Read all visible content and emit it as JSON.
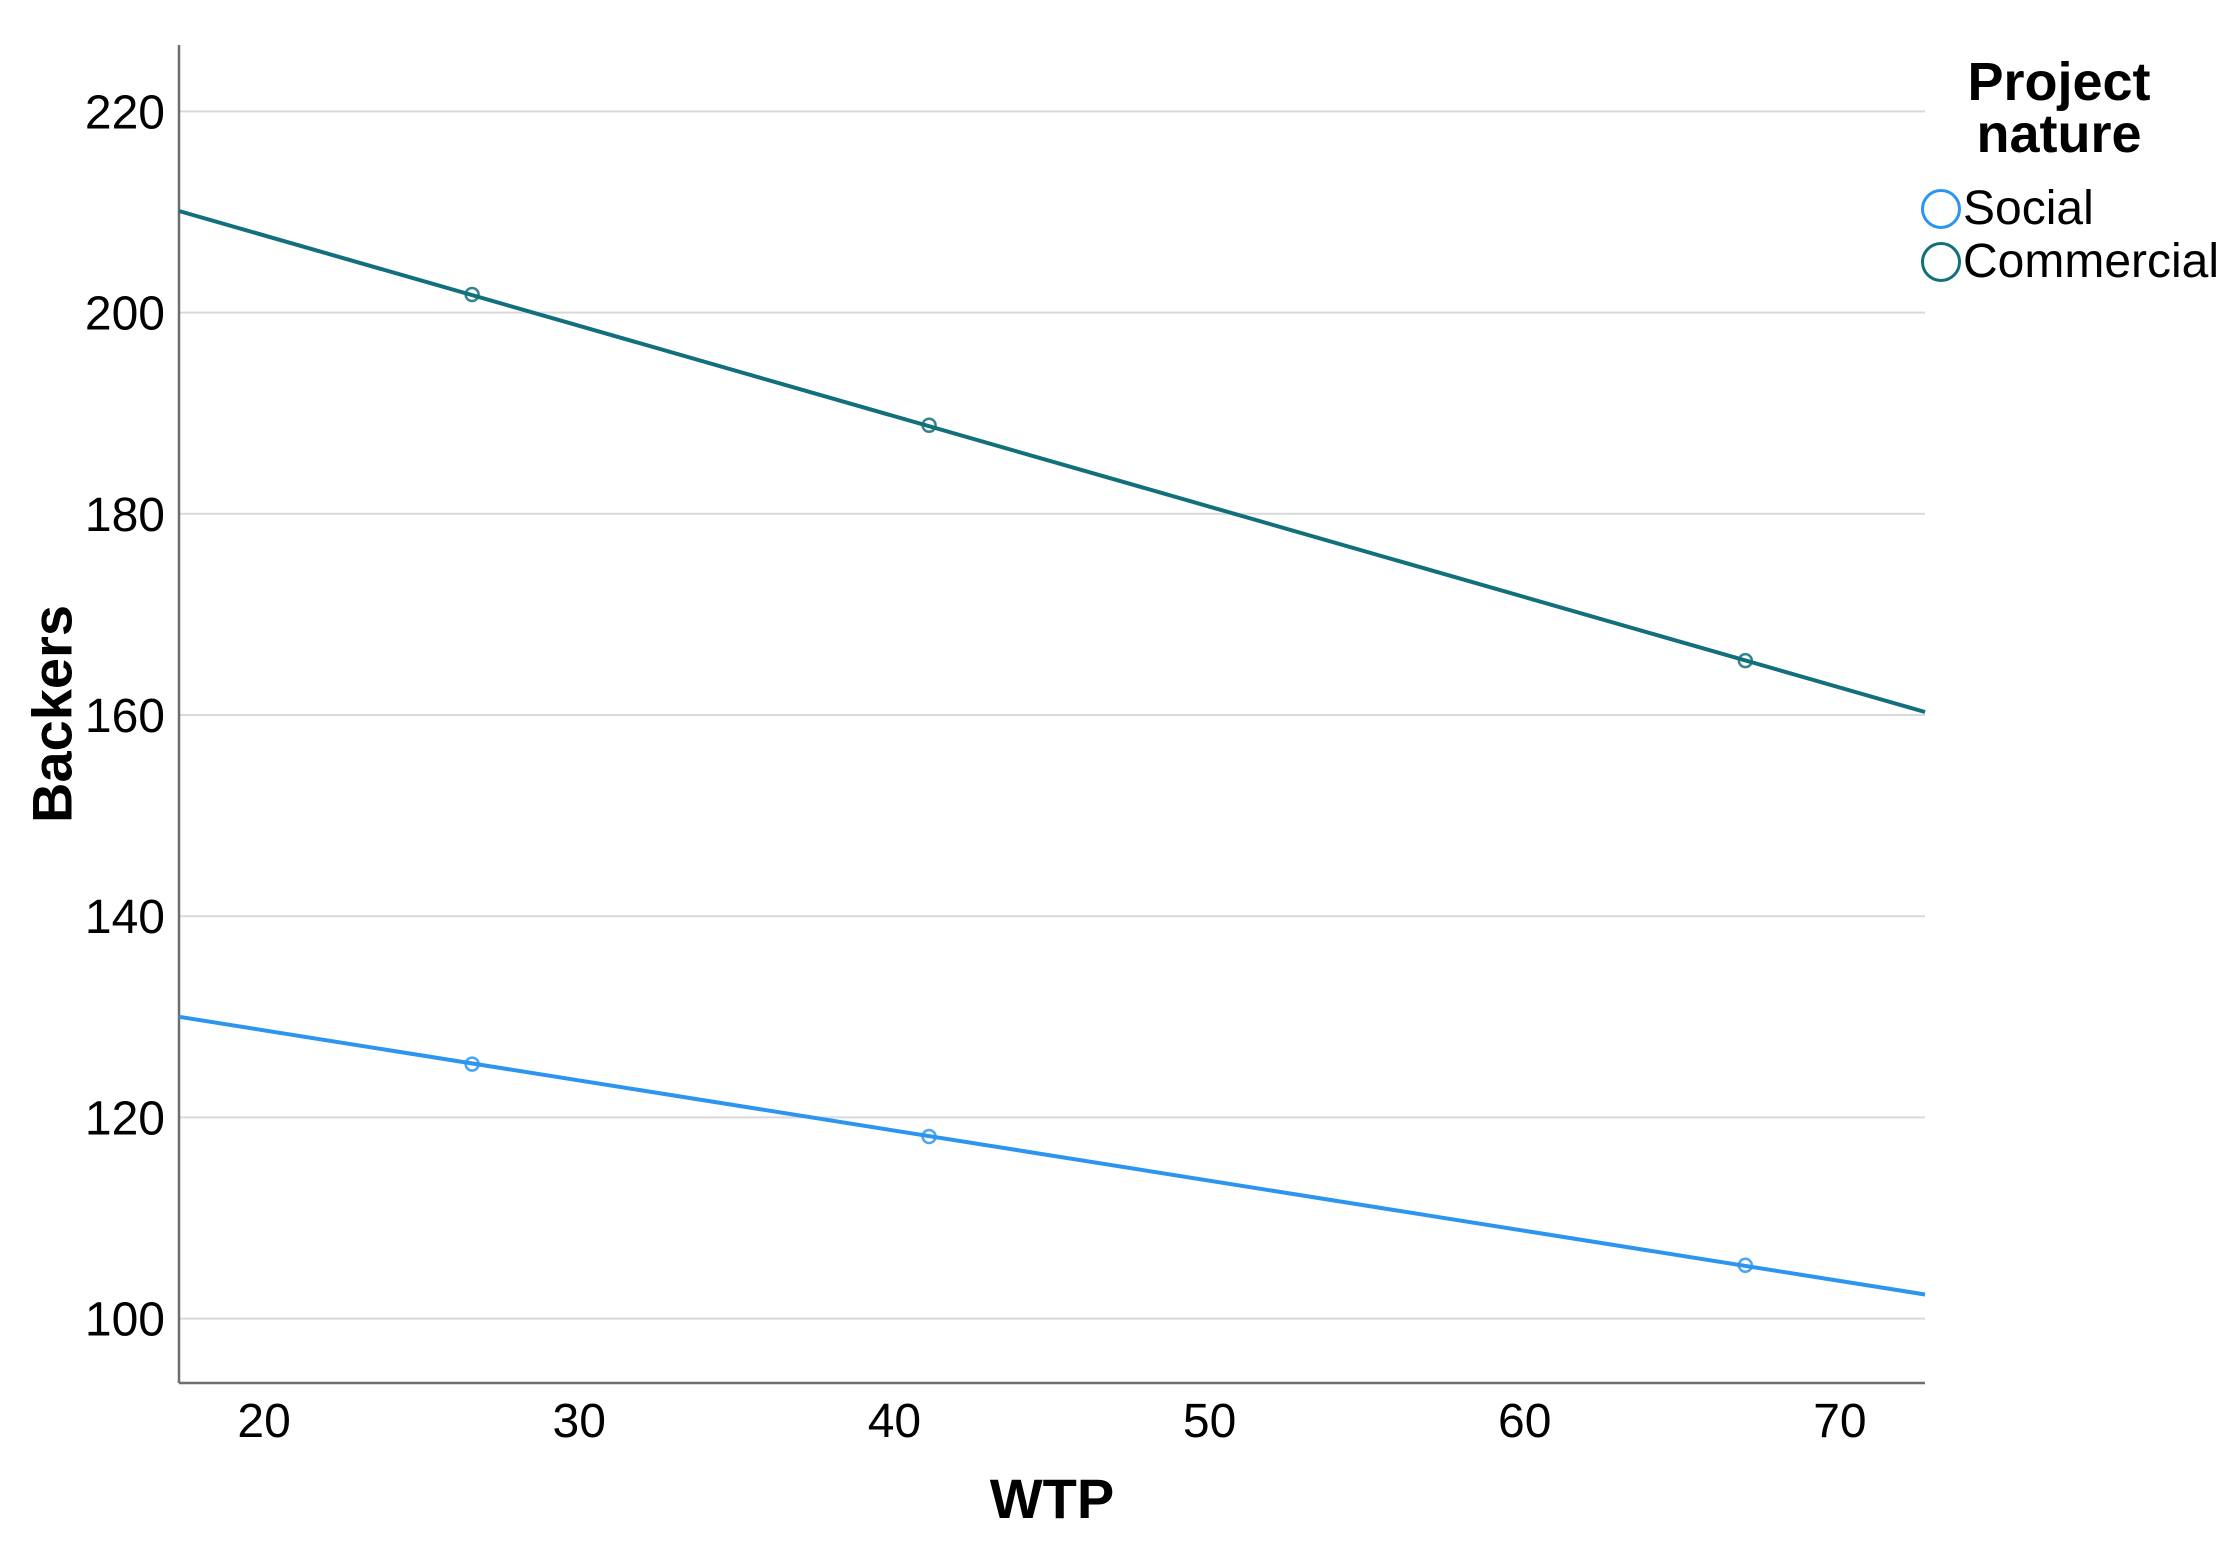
{
  "colors": {
    "background": "#ffffff",
    "axis": "#6e6e6e",
    "gridline": "#d9d9d9",
    "text": "#000000",
    "social": "#2b95ef",
    "commercial": "#11707b"
  },
  "chart_data": {
    "type": "scatter",
    "subtype": "scatter-points-with-linear-fit-lines",
    "title": "",
    "xlabel": "WTP",
    "ylabel": "Backers",
    "x_ticks": [
      20,
      30,
      40,
      50,
      60,
      70
    ],
    "y_ticks": [
      100,
      120,
      140,
      160,
      180,
      200,
      220
    ],
    "xlim": [
      17.3,
      72.7
    ],
    "ylim": [
      93.6,
      226.6
    ],
    "grid": "horizontal-only",
    "legend": {
      "title": "Project nature",
      "position": "top-right",
      "marker_shape": "hollow-circle"
    },
    "series": [
      {
        "name": "Social",
        "color": "#2b95ef",
        "points": [
          [
            26.6,
            125.3
          ],
          [
            41.1,
            118.1
          ],
          [
            67.0,
            105.3
          ]
        ],
        "fit_line": {
          "x": [
            17.3,
            72.7
          ],
          "y": [
            130.0,
            102.4
          ]
        }
      },
      {
        "name": "Commercial",
        "color": "#11707b",
        "points": [
          [
            26.6,
            201.8
          ],
          [
            41.1,
            188.8
          ],
          [
            67.0,
            165.4
          ]
        ],
        "fit_line": {
          "x": [
            17.3,
            72.7
          ],
          "y": [
            210.1,
            160.3
          ]
        }
      }
    ]
  }
}
